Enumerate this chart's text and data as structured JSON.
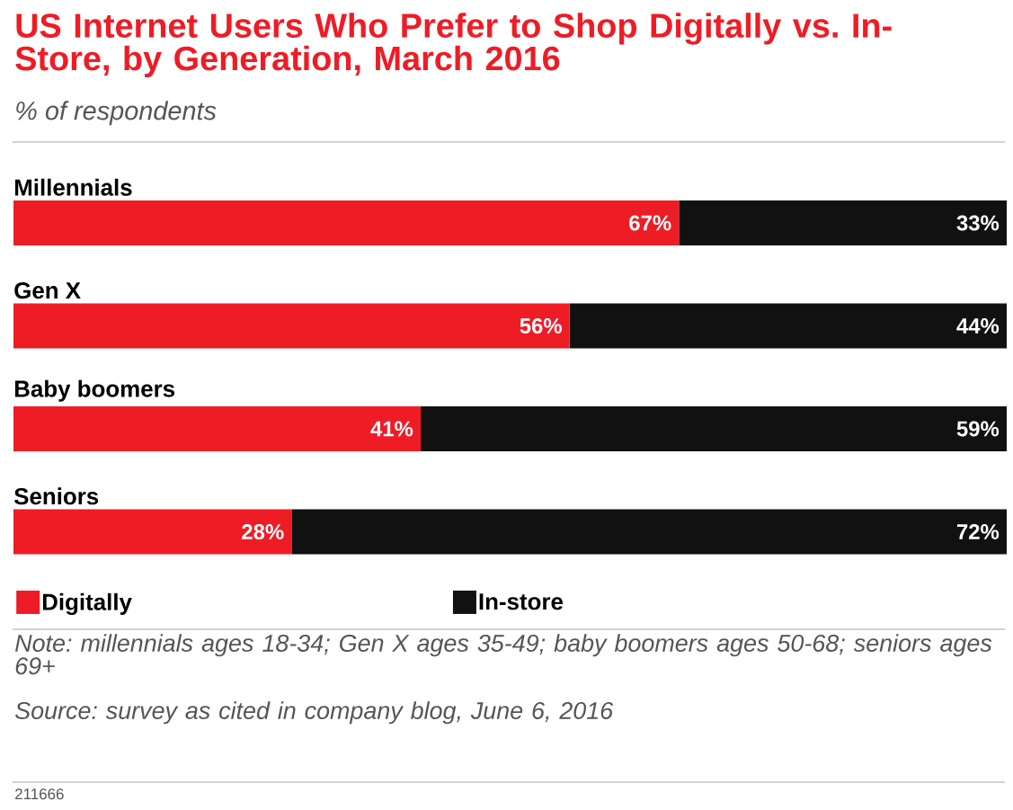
{
  "chart_data": {
    "type": "bar",
    "orientation": "horizontal",
    "stacked": true,
    "title": "US Internet Users Who Prefer to Shop Digitally vs. In-Store, by Generation, March 2016",
    "subtitle": "% of respondents",
    "categories": [
      "Millennials",
      "Gen X",
      "Baby boomers",
      "Seniors"
    ],
    "series": [
      {
        "name": "Digitally",
        "color": "#ee1c25",
        "values": [
          67,
          56,
          41,
          28
        ],
        "value_labels": [
          "67%",
          "56%",
          "41%",
          "28%"
        ]
      },
      {
        "name": "In-store",
        "color": "#111111",
        "values": [
          33,
          44,
          59,
          72
        ],
        "value_labels": [
          "33%",
          "44%",
          "59%",
          "72%"
        ]
      }
    ],
    "legend": "bottom",
    "annotations": [
      "Note: millennials ages 18-34; Gen X ages 35-49; baby boomers ages 50-68; seniors ages 69+",
      "Source: survey as cited in company blog, June 6, 2016",
      "211666"
    ]
  }
}
